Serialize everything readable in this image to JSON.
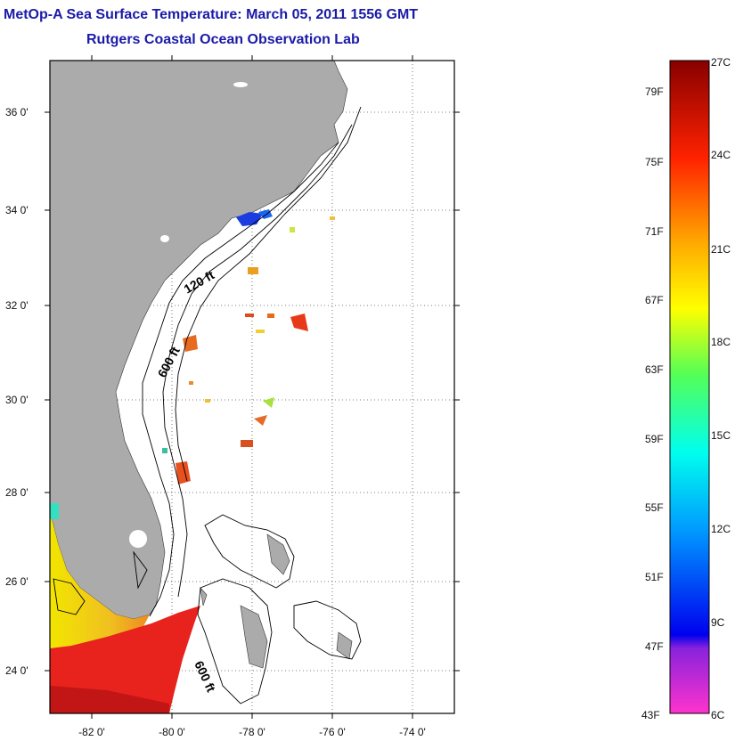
{
  "title": "MetOp-A Sea Surface Temperature:  March 05, 2011 1556 GMT",
  "subtitle": "Rutgers Coastal Ocean Observation Lab",
  "map": {
    "lat_ticks": [
      "36 0'",
      "34 0'",
      "32 0'",
      "30 0'",
      "28 0'",
      "26 0'",
      "24 0'"
    ],
    "lon_ticks": [
      "-82 0'",
      "-80 0'",
      "-78 0'",
      "-76 0'",
      "-74 0'"
    ],
    "contour_labels": [
      "120 ft",
      "600 ft",
      "600 ft"
    ],
    "colors": {
      "land": "#ababab",
      "frame": "#000000",
      "grid": "#555555"
    }
  },
  "colorbar": {
    "fahrenheit_labels": [
      "79F",
      "75F",
      "71F",
      "67F",
      "63F",
      "59F",
      "55F",
      "51F",
      "47F",
      "43F"
    ],
    "celsius_labels": [
      "27C",
      "24C",
      "21C",
      "18C",
      "15C",
      "12C",
      "9C",
      "6C"
    ]
  }
}
